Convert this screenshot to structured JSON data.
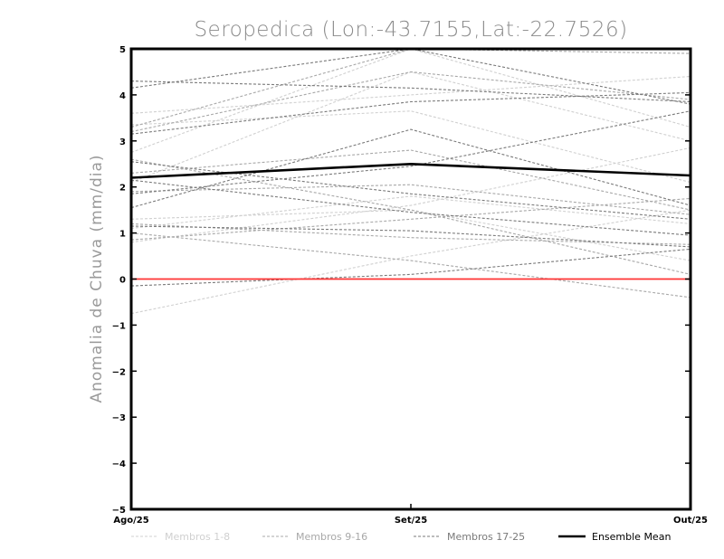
{
  "chart_data": {
    "type": "line",
    "title": "Seropedica (Lon:-43.7155,Lat:-22.7526)",
    "xlabel": "",
    "ylabel": "Anomalia de Chuva (mm/dia)",
    "categories": [
      "Ago/25",
      "Set/25",
      "Out/25"
    ],
    "yticks": [
      "5",
      "4",
      "3",
      "2",
      "1",
      "0",
      "-1",
      "-2",
      "-3",
      "-4",
      "-5"
    ],
    "ylim": [
      -5,
      5
    ],
    "grid": false,
    "reference_line": {
      "y": 0,
      "color": "#ff3333"
    },
    "legend_position": "bottom",
    "legend": [
      {
        "label": "Membros 1-8",
        "color": "#d0d0d0",
        "style": "dashed"
      },
      {
        "label": "Membros 9-16",
        "color": "#a8a8a8",
        "style": "dashed"
      },
      {
        "label": "Membros 17-25",
        "color": "#7a7a7a",
        "style": "dashed"
      },
      {
        "label": "Ensemble Mean",
        "color": "#000000",
        "style": "solid"
      }
    ],
    "series": [
      {
        "group": "Membros 1-8",
        "values": [
          -0.75,
          0.5,
          1.5
        ]
      },
      {
        "group": "Membros 1-8",
        "values": [
          2.1,
          4.5,
          3.0
        ]
      },
      {
        "group": "Membros 1-8",
        "values": [
          3.6,
          4.0,
          4.4
        ]
      },
      {
        "group": "Membros 1-8",
        "values": [
          3.35,
          3.65,
          2.1
        ]
      },
      {
        "group": "Membros 1-8",
        "values": [
          1.1,
          1.8,
          1.2
        ]
      },
      {
        "group": "Membros 1-8",
        "values": [
          2.75,
          5.0,
          3.3
        ]
      },
      {
        "group": "Membros 1-8",
        "values": [
          0.8,
          1.6,
          2.85
        ]
      },
      {
        "group": "Membros 1-8",
        "values": [
          1.3,
          1.5,
          0.4
        ]
      },
      {
        "group": "Membros 9-16",
        "values": [
          3.2,
          4.5,
          3.9
        ]
      },
      {
        "group": "Membros 9-16",
        "values": [
          1.2,
          0.9,
          0.75
        ]
      },
      {
        "group": "Membros 9-16",
        "values": [
          2.6,
          1.5,
          0.1
        ]
      },
      {
        "group": "Membros 9-16",
        "values": [
          2.3,
          2.8,
          1.5
        ]
      },
      {
        "group": "Membros 9-16",
        "values": [
          0.85,
          1.3,
          1.75
        ]
      },
      {
        "group": "Membros 9-16",
        "values": [
          1.0,
          0.4,
          -0.4
        ]
      },
      {
        "group": "Membros 9-16",
        "values": [
          3.3,
          5.0,
          4.9
        ]
      },
      {
        "group": "Membros 9-16",
        "values": [
          1.9,
          2.05,
          1.4
        ]
      },
      {
        "group": "Membros 17-25",
        "values": [
          4.15,
          5.0,
          3.8
        ]
      },
      {
        "group": "Membros 17-25",
        "values": [
          4.3,
          4.15,
          3.85
        ]
      },
      {
        "group": "Membros 17-25",
        "values": [
          1.55,
          3.25,
          1.6
        ]
      },
      {
        "group": "Membros 17-25",
        "values": [
          2.55,
          1.85,
          1.3
        ]
      },
      {
        "group": "Membros 17-25",
        "values": [
          1.85,
          2.45,
          3.65
        ]
      },
      {
        "group": "Membros 17-25",
        "values": [
          3.15,
          3.85,
          4.05
        ]
      },
      {
        "group": "Membros 17-25",
        "values": [
          -0.15,
          0.1,
          0.65
        ]
      },
      {
        "group": "Membros 17-25",
        "values": [
          1.15,
          1.05,
          0.7
        ]
      },
      {
        "group": "Membros 17-25",
        "values": [
          2.15,
          1.45,
          0.95
        ]
      },
      {
        "group": "Ensemble Mean",
        "values": [
          2.2,
          2.5,
          2.25
        ]
      }
    ]
  }
}
